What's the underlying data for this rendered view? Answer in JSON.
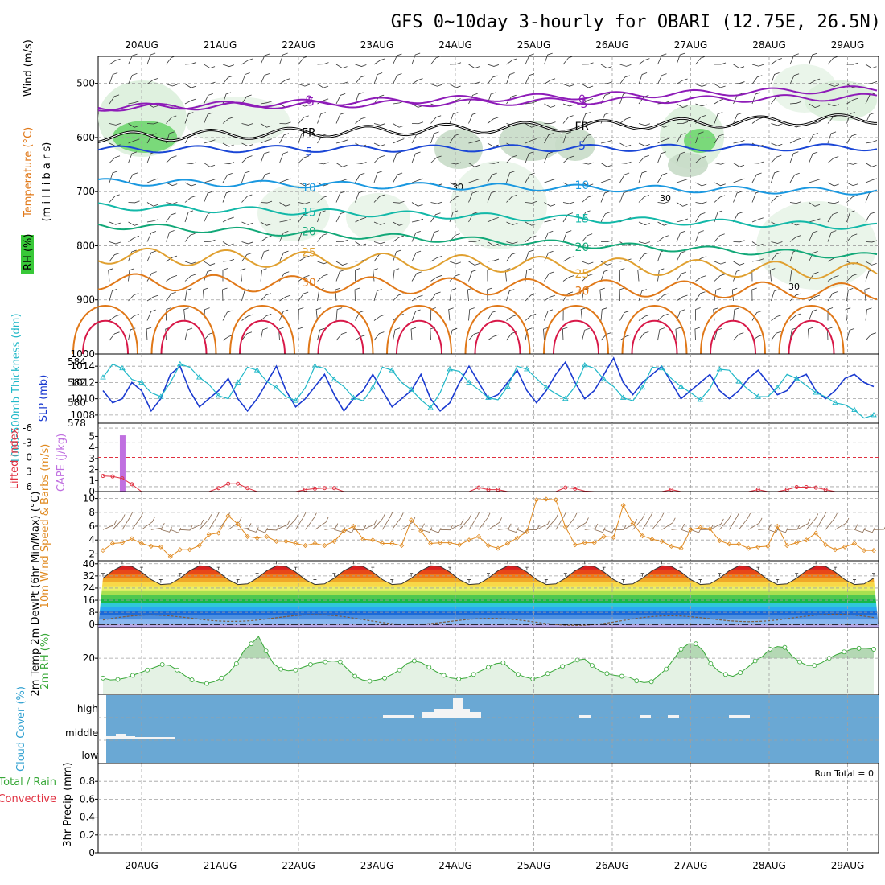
{
  "title": "GFS 0~10day 3-hourly for OBARI (12.75E, 26.5N)",
  "dates": [
    "20AUG",
    "21AUG",
    "22AUG",
    "23AUG",
    "24AUG",
    "25AUG",
    "26AUG",
    "27AUG",
    "28AUG",
    "29AUG"
  ],
  "colors": {
    "temp_neg": "#8e1cb8",
    "temp_0": "#000000",
    "temp_5": "#1a46d6",
    "temp_10": "#1a98e0",
    "temp_15": "#12b8a8",
    "temp_20": "#12a878",
    "temp_25": "#e0a030",
    "temp_30": "#e07818",
    "temp_35": "#d81848",
    "slp": "#1a3ad0",
    "thickness": "#20b8c8",
    "lifted": "#e03040",
    "cape": "#c070e0",
    "wind": "#e08a20",
    "barb": "#8a6a50",
    "rh2m": "#38a838",
    "cloud_bg": "#6aa8d4"
  },
  "chart_data": [
    {
      "type": "contour",
      "name": "upper-air",
      "ylabel_parts": [
        "RH (%)",
        "Temperature (°C)",
        "Wind (m/s)"
      ],
      "ylabel_units": "(m i l l i b a r s)",
      "yticks": [
        500,
        600,
        700,
        800,
        900,
        1000
      ],
      "ylim": [
        450,
        1000
      ],
      "temperature_contours": [
        {
          "level": "-5",
          "label": "-5",
          "p_day0": 545,
          "p_day10": 525
        },
        {
          "level": "0",
          "label": "0",
          "p_day0": 545,
          "p_day10": 510
        },
        {
          "level": "FR",
          "label": "FR",
          "p_day0": 600,
          "p_day10": 565
        },
        {
          "level": "5",
          "label": "5",
          "p_day0": 622,
          "p_day10": 618
        },
        {
          "level": "10",
          "label": "10",
          "p_day0": 682,
          "p_day10": 700
        },
        {
          "level": "15",
          "label": "15",
          "p_day0": 727,
          "p_day10": 765
        },
        {
          "level": "20",
          "label": "20",
          "p_day0": 762,
          "p_day10": 820
        },
        {
          "level": "25",
          "label": "25",
          "p_day0": 818,
          "p_day10": 848
        },
        {
          "level": "30",
          "label": "30",
          "p_day0": 866,
          "p_day10": 885
        }
      ],
      "rh_label": "30"
    },
    {
      "type": "line",
      "name": "slp-thickness",
      "ylabel_left": "1000-500mb Thickness (dm)",
      "ylabel_right": "SLP (mb)",
      "yticks_left": [
        578,
        580,
        582,
        584
      ],
      "yticks_right": [
        1008,
        1010,
        1012,
        1014
      ],
      "series": [
        {
          "name": "SLP",
          "values": [
            1011,
            1009.5,
            1010,
            1012,
            1011,
            1008.5,
            1010,
            1013,
            1014,
            1011,
            1009,
            1010,
            1011,
            1012.5,
            1010,
            1008.5,
            1010,
            1012,
            1014,
            1011,
            1009,
            1010,
            1011.5,
            1013,
            1010.5,
            1008.5,
            1010,
            1011,
            1013,
            1011,
            1009,
            1010,
            1011,
            1013,
            1010,
            1008.5,
            1009.5,
            1012,
            1014,
            1012,
            1010,
            1010.5,
            1012,
            1013.5,
            1011,
            1009.5,
            1011,
            1013,
            1014.5,
            1012,
            1010,
            1011,
            1013,
            1015,
            1012,
            1010.5,
            1012,
            1013,
            1014,
            1012,
            1010,
            1011,
            1012,
            1013,
            1011,
            1010,
            1011,
            1012.5,
            1013.5,
            1012,
            1010.5,
            1011,
            1012.5,
            1013,
            1011,
            1010,
            1011,
            1012.5,
            1013,
            1012,
            1011.5
          ]
        },
        {
          "name": "Thickness",
          "values": [
            582.5,
            583.8,
            583.4,
            582.3,
            582,
            581,
            580.6,
            582,
            583.8,
            583.5,
            582.5,
            581.8,
            580.7,
            580.4,
            582,
            583.5,
            583.2,
            582.1,
            581.5,
            580.6,
            580.2,
            581.5,
            583.6,
            583.4,
            582.3,
            581.6,
            580.5,
            580.2,
            581.5,
            583.5,
            583.2,
            582,
            581.3,
            580.3,
            579.5,
            581,
            583.3,
            583.1,
            582,
            581.3,
            580.5,
            580.3,
            581.6,
            583.6,
            583.3,
            582.4,
            581.5,
            580.9,
            580.4,
            581.6,
            583.7,
            583.4,
            582.3,
            581.6,
            580.5,
            580.2,
            581.5,
            583.5,
            583.4,
            582.4,
            581.6,
            581,
            580.3,
            581.4,
            583.3,
            583.2,
            582.1,
            581.3,
            580.6,
            580.6,
            581.5,
            582.8,
            582.4,
            581.7,
            581,
            580.6,
            580,
            579.8,
            579.3,
            578.5,
            578.8
          ]
        }
      ]
    },
    {
      "type": "bar",
      "name": "lifted-cape",
      "ylabel_left": "Lifted Index",
      "ylabel_right": "CAPE (J/kg)",
      "yticks_left": [
        "-6",
        "-3",
        "0",
        "3",
        "6"
      ],
      "yticks_right": [
        "5",
        "4",
        "3",
        "2",
        "1",
        "0"
      ],
      "cape_bars": [
        {
          "index": 2,
          "value": 5.1
        }
      ],
      "lifted_series": [
        3.8,
        3.9,
        4.3,
        5.5,
        7,
        7,
        7,
        7,
        7,
        7,
        7,
        7,
        6.3,
        5.4,
        5.4,
        6.3,
        7,
        7,
        7,
        7,
        7,
        6.6,
        6.4,
        6.3,
        6.3,
        7,
        7,
        7,
        7,
        7,
        7,
        7,
        7,
        7,
        7,
        7,
        7,
        7,
        7,
        6.2,
        6.6,
        6.6,
        7,
        7,
        7,
        7,
        7,
        7,
        6.2,
        6.4,
        6.9,
        7,
        7,
        7,
        7,
        7,
        7,
        7,
        7,
        6.6,
        7,
        7,
        7,
        7,
        7,
        7,
        7,
        7,
        6.6,
        7,
        7,
        6.6,
        6.1,
        6.1,
        6.2,
        6.6,
        7,
        7,
        7,
        7,
        7
      ]
    },
    {
      "type": "line",
      "name": "10m-wind",
      "ylabel": "10m Wind Speed & Barbs (m/s)",
      "yticks": [
        2,
        4,
        6,
        8,
        10
      ],
      "ylim": [
        1,
        11
      ],
      "values": [
        2.5,
        3.5,
        3.6,
        4.2,
        3.5,
        3.1,
        3,
        1.6,
        2.6,
        2.6,
        3.2,
        4.8,
        5,
        7.5,
        6.3,
        4.5,
        4.3,
        4.5,
        3.8,
        3.8,
        3.5,
        3.2,
        3.5,
        3.2,
        3.8,
        5.3,
        6,
        4.1,
        4,
        3.5,
        3.5,
        3.2,
        6.9,
        5.3,
        3.5,
        3.6,
        3.6,
        3.3,
        4,
        4.5,
        3.2,
        2.8,
        3.5,
        4.3,
        5.2,
        9.8,
        9.9,
        9.8,
        5.9,
        3.3,
        3.6,
        3.6,
        4.5,
        4.4,
        9,
        6.4,
        4.6,
        4.1,
        3.8,
        3.1,
        2.8,
        5.5,
        5.8,
        5.6,
        3.9,
        3.4,
        3.4,
        2.8,
        3,
        3.1,
        6,
        3.2,
        3.6,
        4,
        5,
        3.3,
        2.6,
        3,
        3.5,
        2.5,
        2.5
      ]
    },
    {
      "type": "area",
      "name": "2m-temp",
      "ylabel": "2m Temp 2m DewPt (6hr Min/Max) (°C)",
      "yticks": [
        0,
        8,
        16,
        24,
        32,
        40
      ],
      "ylim": [
        -2,
        42
      ],
      "temp_min": 26,
      "temp_max": 39,
      "dewpt_base": 3,
      "color_bands": [
        "#b8a8e8",
        "#8ab8f0",
        "#4a8ee0",
        "#1a6ad8",
        "#2aa8f0",
        "#30c8d8",
        "#18b848",
        "#50c850",
        "#a8e050",
        "#e8f068",
        "#f8d848",
        "#f0a828",
        "#f07818",
        "#e84818",
        "#d82020",
        "#a80c10"
      ]
    },
    {
      "type": "area",
      "name": "2m-rh",
      "ylabel": "2m RH (%)",
      "yticks": [
        20
      ],
      "ylim": [
        0,
        37
      ],
      "values": [
        9,
        8,
        8.2,
        9,
        10.5,
        12,
        13.5,
        15,
        16.5,
        16,
        13.5,
        10.5,
        8,
        6.5,
        6,
        7,
        9,
        12,
        17,
        24,
        28,
        32,
        24,
        17,
        14,
        13,
        13.5,
        15,
        16.5,
        17.5,
        18,
        18.5,
        18,
        14,
        10,
        8,
        7.3,
        8,
        9,
        11,
        13.5,
        17,
        18.5,
        17.5,
        15,
        12.5,
        10.5,
        9,
        8.5,
        9,
        11,
        13,
        15,
        17,
        17.5,
        14,
        11,
        9.5,
        8.5,
        9.5,
        11.5,
        13.5,
        15.5,
        17,
        19,
        19.5,
        16,
        13,
        11.5,
        10.5,
        10,
        9.5,
        7.5,
        6.5,
        7,
        10.5,
        14,
        19.5,
        25,
        28,
        28,
        24,
        17,
        13,
        11,
        10,
        12,
        15,
        18.5,
        21,
        25,
        26.5,
        26,
        21,
        18,
        16,
        16,
        17.5,
        20,
        22,
        23.5,
        25,
        25.5,
        25.5,
        25
      ]
    },
    {
      "type": "heatmap",
      "name": "cloud-cover",
      "ylabel": "Cloud Cover (%)",
      "yticks": [
        "high",
        "middle",
        "low"
      ]
    },
    {
      "type": "bar",
      "name": "precip",
      "ylabel_total": "Total / Rain",
      "ylabel_conv": "Convective",
      "ylabel": "3hr Precip (mm)",
      "yticks": [
        "0",
        "0.2",
        "0.4",
        "0.6",
        "0.8"
      ],
      "ylim": [
        0,
        1
      ],
      "run_total": "Run Total = 0",
      "values": []
    }
  ]
}
